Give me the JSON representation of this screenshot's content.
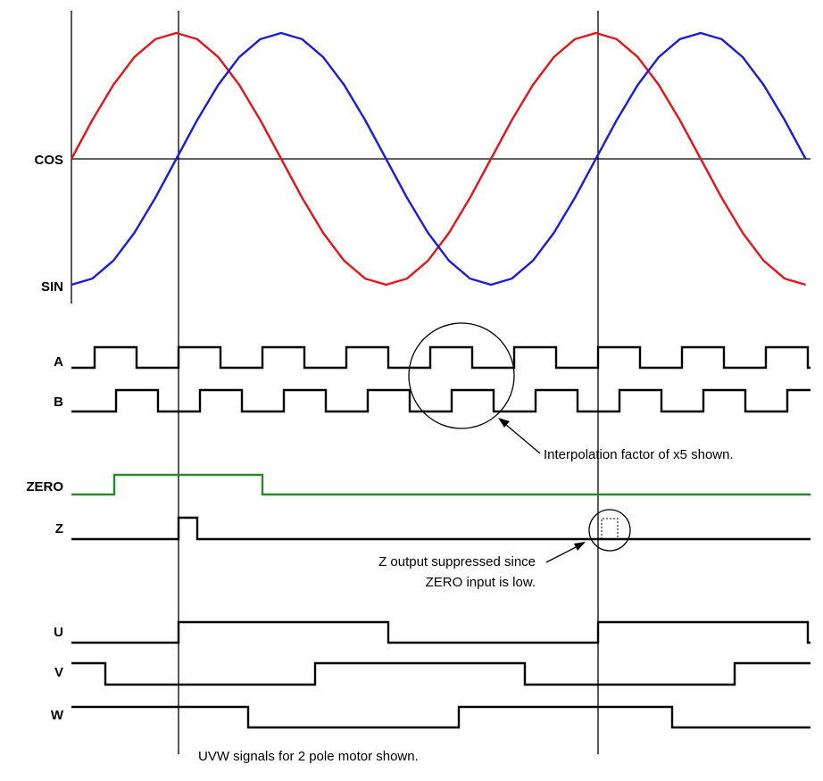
{
  "labels": {
    "cos": "COS",
    "sin": "SIN",
    "a": "A",
    "b": "B",
    "zero": "ZERO",
    "z": "Z",
    "u": "U",
    "v": "V",
    "w": "W"
  },
  "annotations": {
    "interpolation": "Interpolation factor of x5 shown.",
    "z_suppressed_line1": "Z output suppressed since",
    "z_suppressed_line2": "ZERO input is low.",
    "uvw": "UVW signals for 2 pole motor shown."
  },
  "colors": {
    "cos_trace": "#e8141c",
    "sin_trace": "#1c1cdc",
    "zero_trace": "#2a8a2a",
    "digital_trace": "#000000"
  }
}
